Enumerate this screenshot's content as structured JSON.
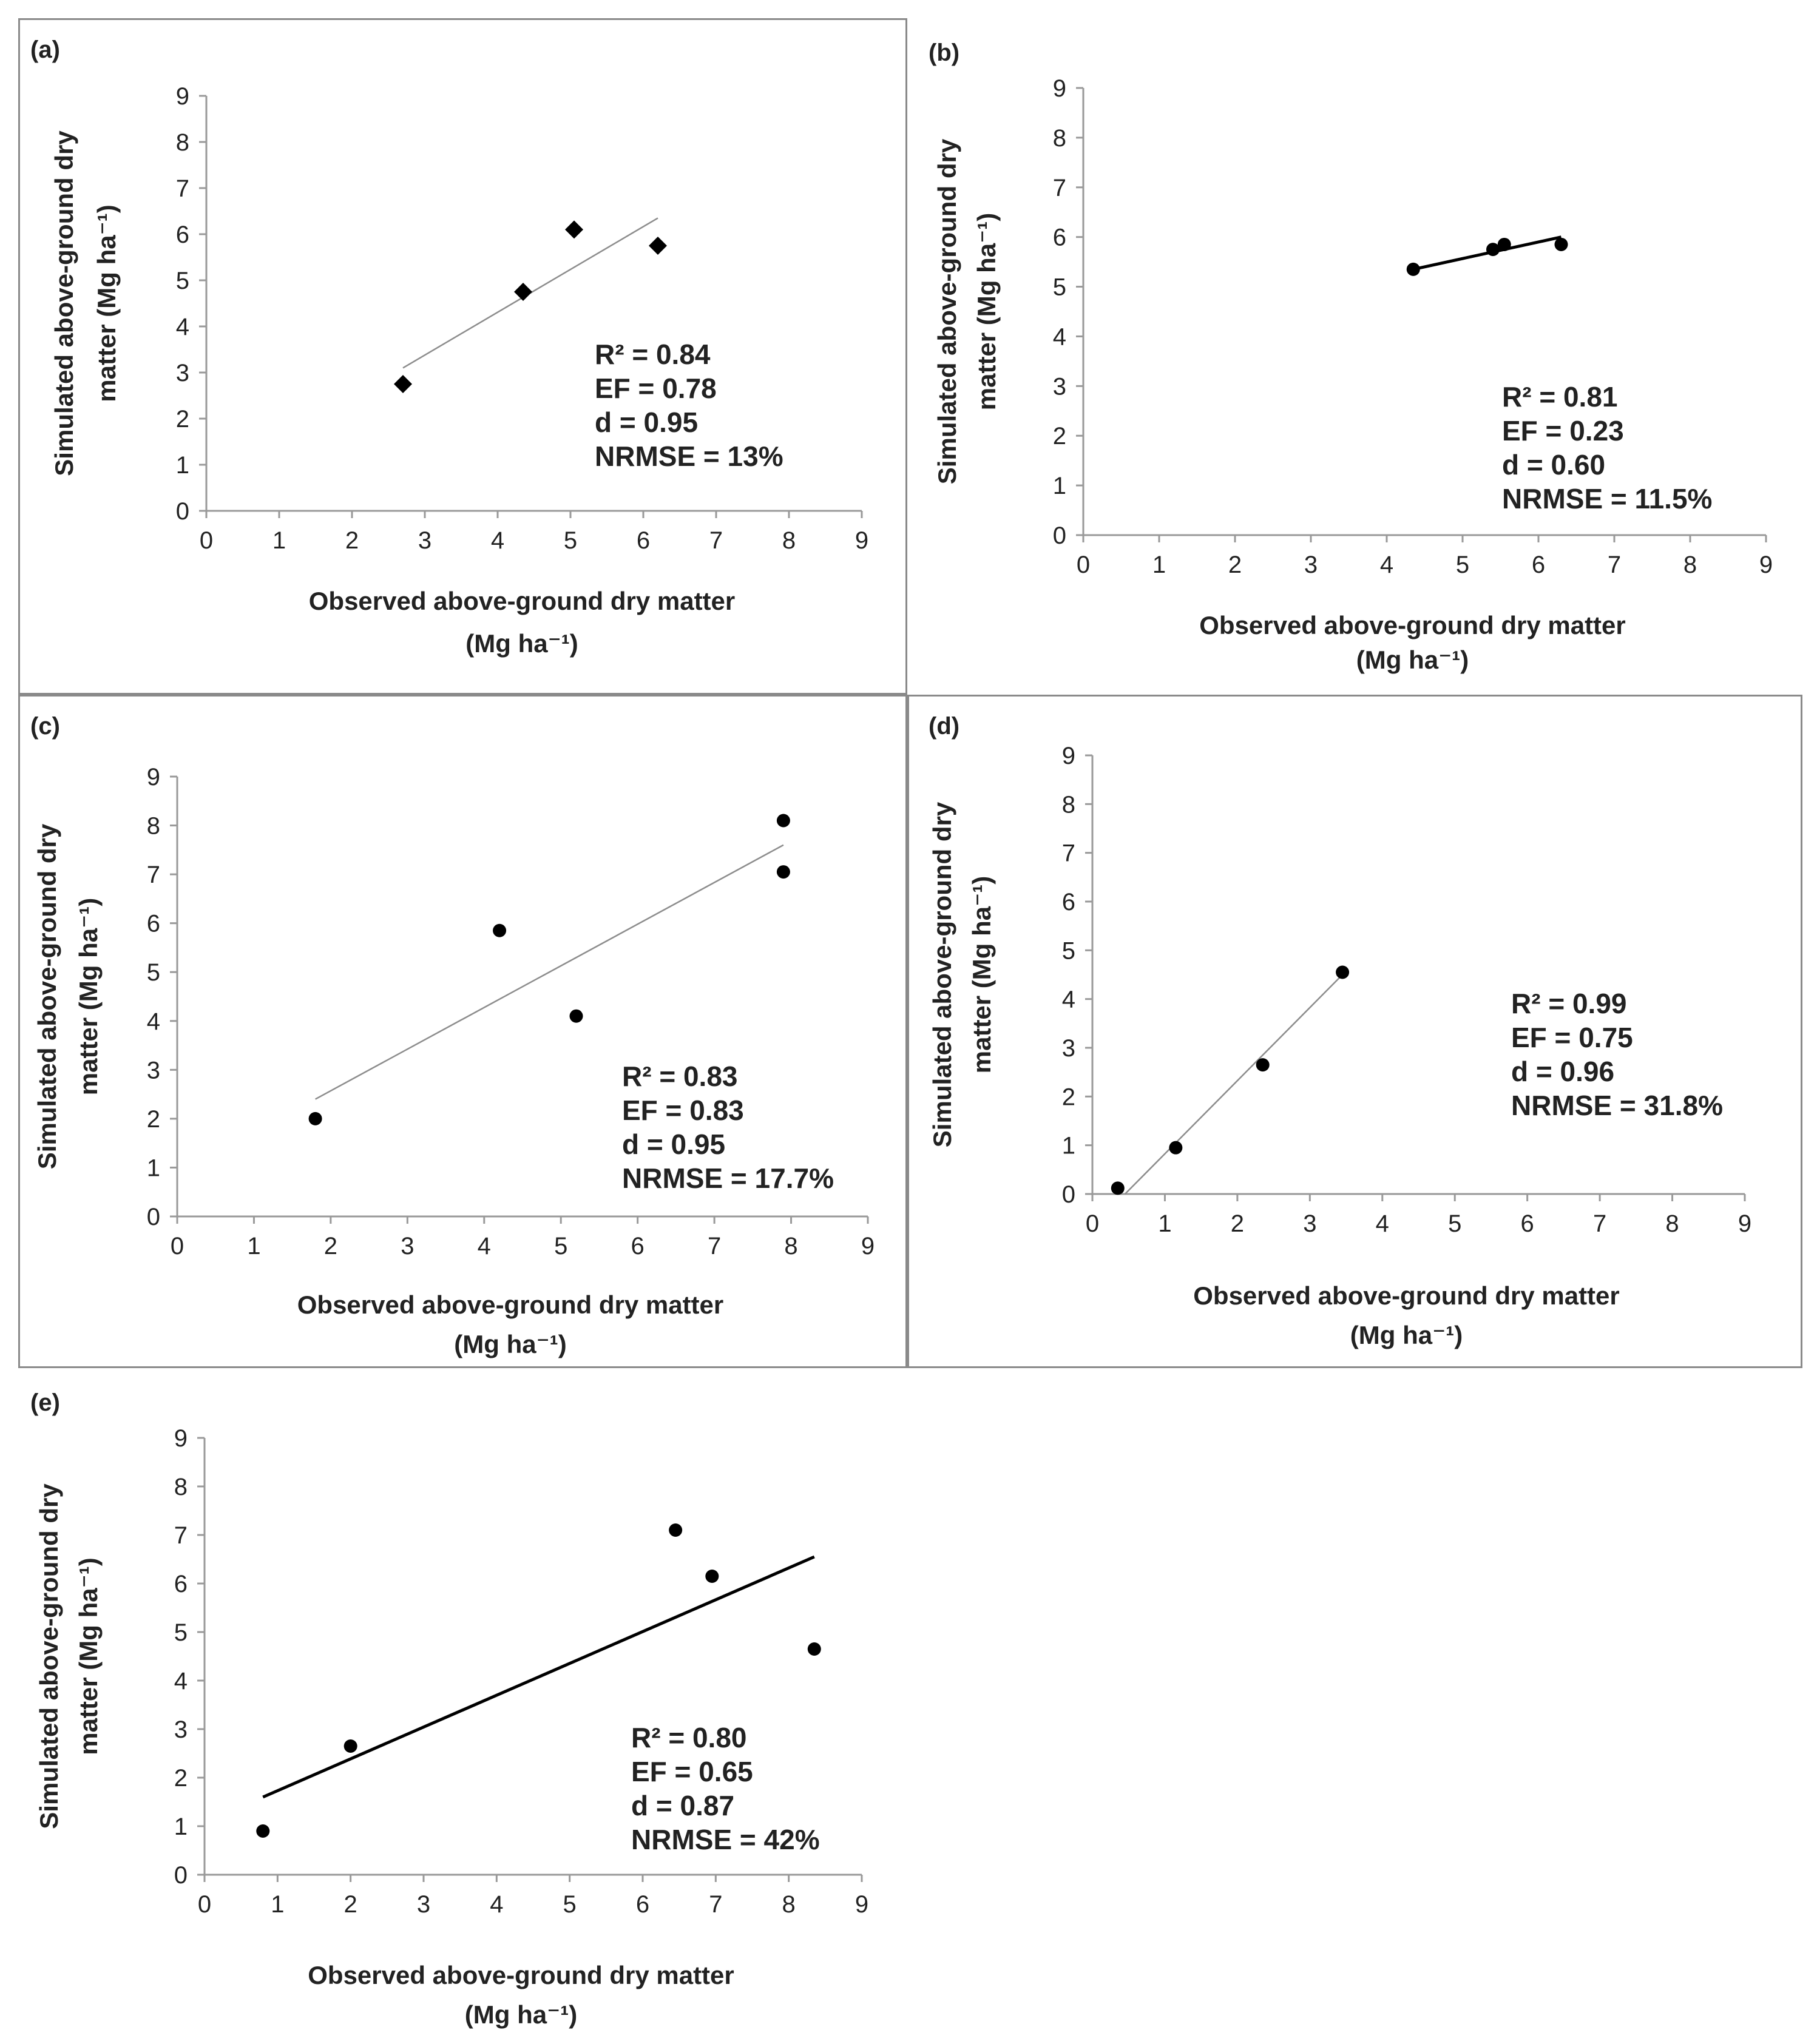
{
  "figure_title": "",
  "colors": {
    "marker": "#000000",
    "trend_line": "#8c8c8c",
    "trend_line_dark": "#000000",
    "axis": "#999999",
    "frame": "#8a8a8a"
  },
  "chart_data": [
    {
      "id": "a",
      "panel_label": "(a)",
      "type": "scatter",
      "marker": "diamond",
      "trend_style": "thin-gray",
      "xlabel_line1": "Observed above-ground dry matter",
      "xlabel_line2": "(Mg ha⁻¹)",
      "ylabel_line1": "Simulated above-ground dry",
      "ylabel_line2": "matter (Mg ha⁻¹)",
      "xlim": [
        0,
        9
      ],
      "ylim": [
        0,
        9
      ],
      "ticks": [
        0,
        1,
        2,
        3,
        4,
        5,
        6,
        7,
        8,
        9
      ],
      "x": [
        2.7,
        4.35,
        5.05,
        6.2
      ],
      "y": [
        2.75,
        4.75,
        6.1,
        5.75
      ],
      "trend_line": {
        "x": [
          2.7,
          6.2
        ],
        "y": [
          3.1,
          6.35
        ]
      },
      "stats": [
        "R² = 0.84",
        "EF = 0.78",
        "d = 0.95",
        "NRMSE = 13%"
      ]
    },
    {
      "id": "b",
      "panel_label": "(b)",
      "type": "scatter",
      "marker": "circle",
      "trend_style": "thick-black",
      "xlabel_line1": "Observed above-ground dry matter",
      "xlabel_line2": "(Mg ha⁻¹)",
      "ylabel_line1": "Simulated above-ground dry",
      "ylabel_line2": "matter (Mg ha⁻¹)",
      "xlim": [
        0,
        9
      ],
      "ylim": [
        0,
        9
      ],
      "ticks": [
        0,
        1,
        2,
        3,
        4,
        5,
        6,
        7,
        8,
        9
      ],
      "x": [
        4.35,
        5.4,
        5.55,
        6.3
      ],
      "y": [
        5.35,
        5.75,
        5.85,
        5.85
      ],
      "trend_line": {
        "x": [
          4.35,
          6.3
        ],
        "y": [
          5.35,
          6.0
        ]
      },
      "stats": [
        "R² = 0.81",
        "EF = 0.23",
        "d = 0.60",
        "NRMSE = 11.5%"
      ]
    },
    {
      "id": "c",
      "panel_label": "(c)",
      "type": "scatter",
      "marker": "circle",
      "trend_style": "thin-gray",
      "xlabel_line1": "Observed above-ground dry matter",
      "xlabel_line2": "(Mg ha⁻¹)",
      "ylabel_line1": "Simulated above-ground dry",
      "ylabel_line2": "matter (Mg ha⁻¹)",
      "xlim": [
        0,
        9
      ],
      "ylim": [
        0,
        9
      ],
      "ticks": [
        0,
        1,
        2,
        3,
        4,
        5,
        6,
        7,
        8,
        9
      ],
      "x": [
        1.8,
        4.2,
        5.2,
        7.9,
        7.9
      ],
      "y": [
        2.0,
        5.85,
        4.1,
        7.05,
        8.1
      ],
      "trend_line": {
        "x": [
          1.8,
          7.9
        ],
        "y": [
          2.4,
          7.6
        ]
      },
      "stats": [
        "R² = 0.83",
        "EF = 0.83",
        "d = 0.95",
        "NRMSE = 17.7%"
      ]
    },
    {
      "id": "d",
      "panel_label": "(d)",
      "type": "scatter",
      "marker": "circle",
      "trend_style": "thin-gray",
      "xlabel_line1": "Observed above-ground dry matter",
      "xlabel_line2": "(Mg ha⁻¹)",
      "ylabel_line1": "Simulated above-ground dry",
      "ylabel_line2": "matter (Mg ha⁻¹)",
      "xlim": [
        0,
        9
      ],
      "ylim": [
        0,
        9
      ],
      "ticks": [
        0,
        1,
        2,
        3,
        4,
        5,
        6,
        7,
        8,
        9
      ],
      "x": [
        0.35,
        1.15,
        2.35,
        3.45
      ],
      "y": [
        0.12,
        0.95,
        2.65,
        4.55
      ],
      "trend_line": {
        "x": [
          0.45,
          3.45
        ],
        "y": [
          0.0,
          4.5
        ]
      },
      "stats": [
        "R² = 0.99",
        "EF = 0.75",
        "d = 0.96",
        "NRMSE = 31.8%"
      ]
    },
    {
      "id": "e",
      "panel_label": "(e)",
      "type": "scatter",
      "marker": "circle",
      "trend_style": "thick-black",
      "xlabel_line1": "Observed above-ground dry matter",
      "xlabel_line2": "(Mg ha⁻¹)",
      "ylabel_line1": "Simulated above-ground dry",
      "ylabel_line2": "matter (Mg ha⁻¹)",
      "xlim": [
        0,
        9
      ],
      "ylim": [
        0,
        9
      ],
      "ticks": [
        0,
        1,
        2,
        3,
        4,
        5,
        6,
        7,
        8,
        9
      ],
      "x": [
        0.8,
        2.0,
        6.45,
        6.95,
        8.35
      ],
      "y": [
        0.9,
        2.65,
        7.1,
        6.15,
        4.65
      ],
      "trend_line": {
        "x": [
          0.8,
          8.35
        ],
        "y": [
          1.6,
          6.55
        ]
      },
      "stats": [
        "R² = 0.80",
        "EF = 0.65",
        "d = 0.87",
        "NRMSE = 42%"
      ]
    }
  ]
}
